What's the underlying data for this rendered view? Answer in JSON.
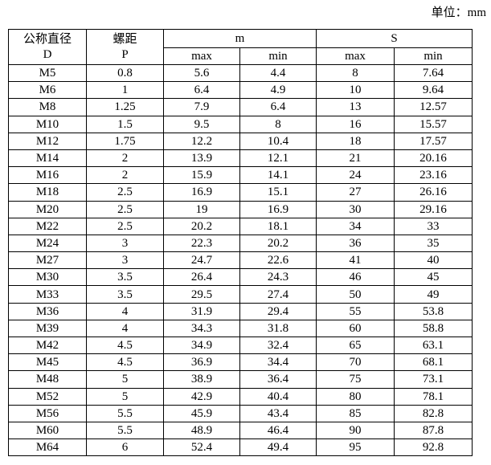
{
  "unit_label": "单位：mm",
  "header": {
    "d_label_cn": "公称直径",
    "d_label": "D",
    "p_label_cn": "螺距",
    "p_label": "P",
    "m_group": "m",
    "s_group": "S",
    "m_max": "max",
    "m_min": "min",
    "s_max": "max",
    "s_min": "min"
  },
  "rows": [
    [
      "M5",
      "0.8",
      "5.6",
      "4.4",
      "8",
      "7.64"
    ],
    [
      "M6",
      "1",
      "6.4",
      "4.9",
      "10",
      "9.64"
    ],
    [
      "M8",
      "1.25",
      "7.9",
      "6.4",
      "13",
      "12.57"
    ],
    [
      "M10",
      "1.5",
      "9.5",
      "8",
      "16",
      "15.57"
    ],
    [
      "M12",
      "1.75",
      "12.2",
      "10.4",
      "18",
      "17.57"
    ],
    [
      "M14",
      "2",
      "13.9",
      "12.1",
      "21",
      "20.16"
    ],
    [
      "M16",
      "2",
      "15.9",
      "14.1",
      "24",
      "23.16"
    ],
    [
      "M18",
      "2.5",
      "16.9",
      "15.1",
      "27",
      "26.16"
    ],
    [
      "M20",
      "2.5",
      "19",
      "16.9",
      "30",
      "29.16"
    ],
    [
      "M22",
      "2.5",
      "20.2",
      "18.1",
      "34",
      "33"
    ],
    [
      "M24",
      "3",
      "22.3",
      "20.2",
      "36",
      "35"
    ],
    [
      "M27",
      "3",
      "24.7",
      "22.6",
      "41",
      "40"
    ],
    [
      "M30",
      "3.5",
      "26.4",
      "24.3",
      "46",
      "45"
    ],
    [
      "M33",
      "3.5",
      "29.5",
      "27.4",
      "50",
      "49"
    ],
    [
      "M36",
      "4",
      "31.9",
      "29.4",
      "55",
      "53.8"
    ],
    [
      "M39",
      "4",
      "34.3",
      "31.8",
      "60",
      "58.8"
    ],
    [
      "M42",
      "4.5",
      "34.9",
      "32.4",
      "65",
      "63.1"
    ],
    [
      "M45",
      "4.5",
      "36.9",
      "34.4",
      "70",
      "68.1"
    ],
    [
      "M48",
      "5",
      "38.9",
      "36.4",
      "75",
      "73.1"
    ],
    [
      "M52",
      "5",
      "42.9",
      "40.4",
      "80",
      "78.1"
    ],
    [
      "M56",
      "5.5",
      "45.9",
      "43.4",
      "85",
      "82.8"
    ],
    [
      "M60",
      "5.5",
      "48.9",
      "46.4",
      "90",
      "87.8"
    ],
    [
      "M64",
      "6",
      "52.4",
      "49.4",
      "95",
      "92.8"
    ]
  ]
}
